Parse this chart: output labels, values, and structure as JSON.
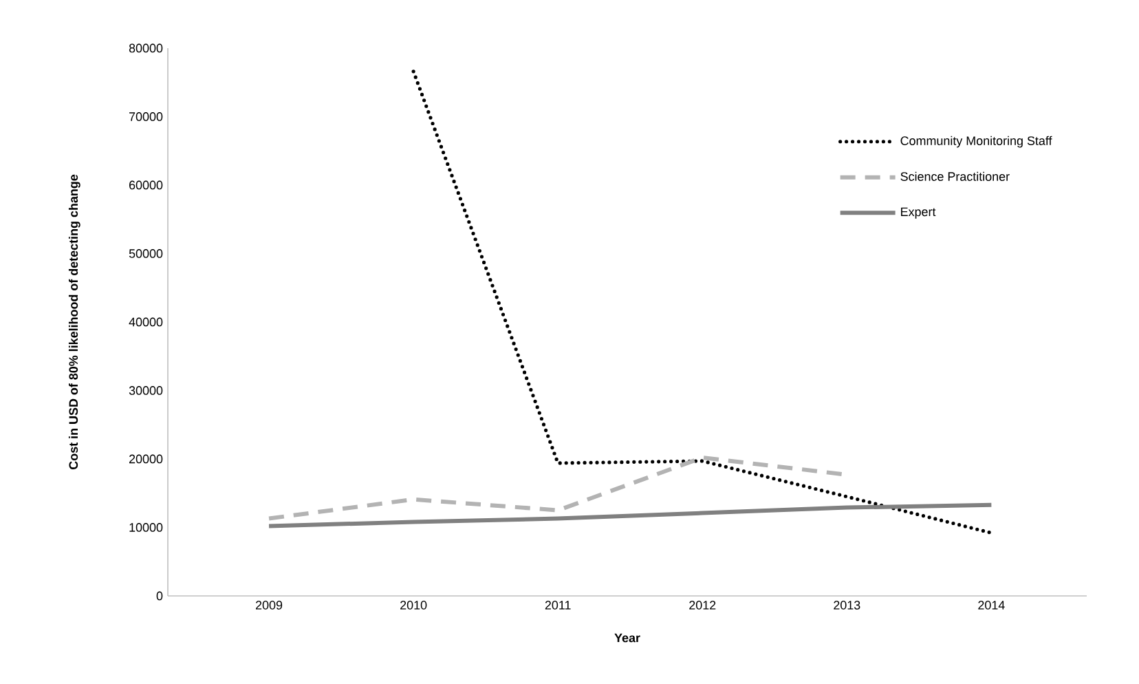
{
  "chart_data": {
    "type": "line",
    "xlabel": "Year",
    "ylabel": "Cost in USD of 80% likelihood of detecting change",
    "categories": [
      "2009",
      "2010",
      "2011",
      "2012",
      "2013",
      "2014"
    ],
    "series": [
      {
        "name": "Community Monitoring Staff",
        "color": "#000000",
        "line_style": "dotted",
        "values": [
          null,
          76600,
          19400,
          19700,
          14500,
          9200
        ]
      },
      {
        "name": "Science Practitioner",
        "color": "#b3b3b3",
        "line_style": "dashed",
        "values": [
          11300,
          14100,
          12500,
          20200,
          17700,
          null
        ]
      },
      {
        "name": "Expert",
        "color": "#808080",
        "line_style": "solid",
        "values": [
          10200,
          10800,
          11300,
          12100,
          12900,
          13300
        ]
      }
    ],
    "ylim": [
      0,
      80000
    ],
    "yticks": [
      0,
      10000,
      20000,
      30000,
      40000,
      50000,
      60000,
      70000,
      80000
    ],
    "grid": false,
    "legend": "top right",
    "marker": "none"
  }
}
